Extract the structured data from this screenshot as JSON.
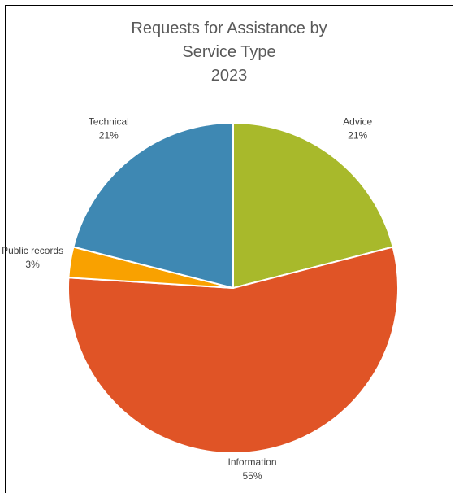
{
  "chart_data": {
    "type": "pie",
    "title": [
      "Requests for Assistance by",
      "Service Type",
      "2023"
    ],
    "categories": [
      "Advice",
      "Information",
      "Public records",
      "Technical"
    ],
    "values": [
      21,
      55,
      3,
      21
    ],
    "value_labels": [
      "21%",
      "55%",
      "3%",
      "21%"
    ],
    "colors": [
      "#a8b92b",
      "#e05426",
      "#f9a100",
      "#3e88b3"
    ],
    "legend": "none"
  }
}
